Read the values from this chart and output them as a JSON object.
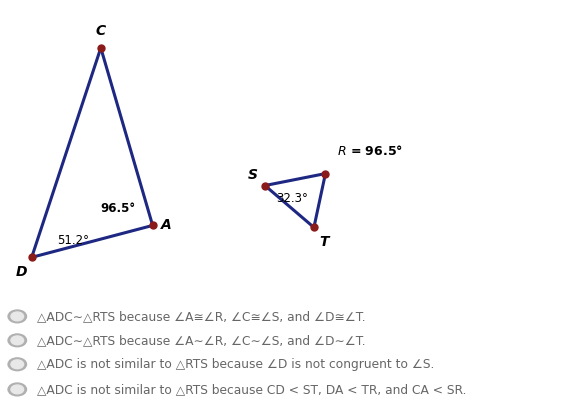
{
  "bg_color": "#ffffff",
  "triangle1": {
    "C": [
      0.175,
      0.88
    ],
    "A": [
      0.265,
      0.435
    ],
    "D": [
      0.055,
      0.355
    ],
    "color": "#1e2882",
    "dot_color": "#8b1a1a"
  },
  "triangle2": {
    "S": [
      0.46,
      0.535
    ],
    "R": [
      0.565,
      0.565
    ],
    "T": [
      0.545,
      0.43
    ],
    "color": "#1e2882",
    "dot_color": "#8b1a1a"
  },
  "text_color": "#666666",
  "label_color": "#000000",
  "font_size_labels": 10,
  "font_size_angles": 8.5,
  "font_size_options": 8.8,
  "option_texts": [
    "△ADC∼△RTS because ∠A≅∠R, ∠C≅∠S, and ∠D≅∠T.",
    "△ADC∼△RTS because ∠A∼∠R, ∠C∼∠S, and ∠D∼∠T.",
    "△ADC is not similar to △RTS because ∠D is not congruent to ∠S.",
    "△ADC is not similar to △RTS because CD < ST, DA < TR, and CA < SR."
  ]
}
